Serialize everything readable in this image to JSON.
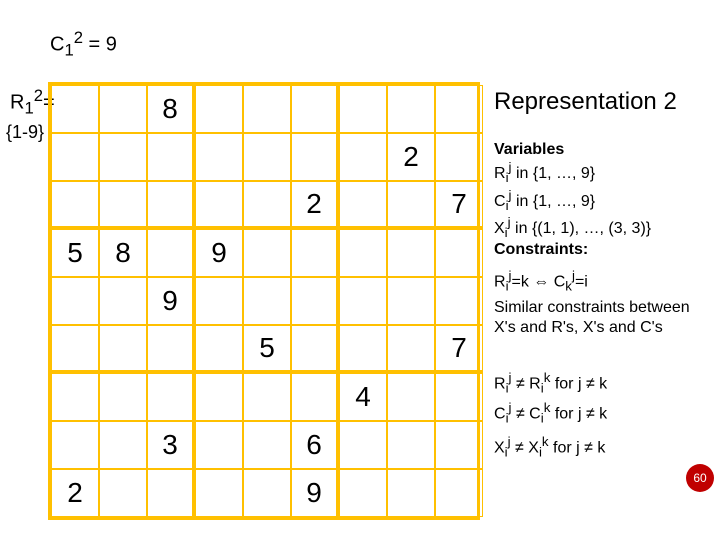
{
  "labels": {
    "c12": "C<sub>1</sub><sup>2</sup> = 9",
    "r12": "R<sub>1</sub><sup>2</sup>=",
    "domain": "{1-9}"
  },
  "title": "Representation 2",
  "grid": {
    "cell_size": 48,
    "border_color": "#ffc000",
    "border_color_hex": "#ffc000",
    "values": [
      [
        "",
        "",
        "8",
        "",
        "",
        "",
        "",
        "",
        ""
      ],
      [
        "",
        "",
        "",
        "",
        "",
        "",
        "",
        "2",
        ""
      ],
      [
        "",
        "",
        "",
        "",
        "",
        "2",
        "",
        "",
        "7"
      ],
      [
        "5",
        "8",
        "",
        "9",
        "",
        "",
        "",
        "",
        ""
      ],
      [
        "",
        "",
        "9",
        "",
        "",
        "",
        "",
        "",
        ""
      ],
      [
        "",
        "",
        "",
        "",
        "5",
        "",
        "",
        "",
        "7"
      ],
      [
        "",
        "",
        "",
        "",
        "",
        "",
        "4",
        "",
        ""
      ],
      [
        "",
        "",
        "3",
        "",
        "",
        "6",
        "",
        "",
        ""
      ],
      [
        "2",
        "",
        "",
        "",
        "",
        "9",
        "",
        "",
        ""
      ]
    ]
  },
  "info": {
    "variables_heading": "Variables",
    "var1": "R<sub>i</sub><sup>j</sup> in {1, …, 9}",
    "var2": "C<sub>i</sub><sup>j</sup> in {1, …, 9}",
    "var3": "X<sub>i</sub><sup>j</sup> in {(1, 1), …, (3, 3)}",
    "constraints_heading": "Constraints:",
    "c1": "R<sub>i</sub><sup>j</sup>=k ⇔ C<sub>k</sub><sup>j</sup>=i",
    "c2": "Similar constraints between X's and R's, X's and C's",
    "c3": "R<sub>i</sub><sup>j</sup> ≠ R<sub>i</sub><sup>k</sup> for j ≠ k",
    "c4": "C<sub>i</sub><sup>j</sup> ≠ C<sub>i</sub><sup>k</sup> for j ≠ k",
    "c5": "X<sub>i</sub><sup>j</sup> ≠ X<sub>i</sub><sup>k</sup> for j ≠ k"
  },
  "page_number": "60",
  "colors": {
    "grid_border": "#ffc000",
    "text": "#000000",
    "background": "#ffffff",
    "pagenum_bg": "#c00000"
  }
}
